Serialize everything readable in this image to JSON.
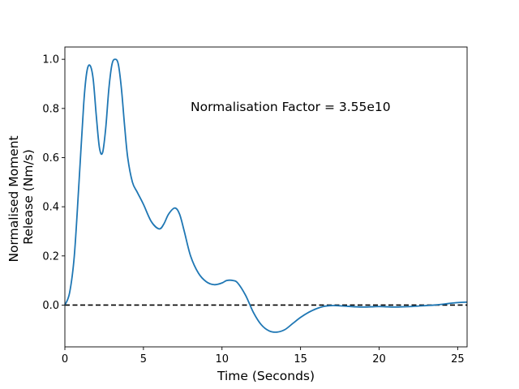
{
  "chart_data": {
    "type": "line",
    "title": "",
    "xlabel": "Time (Seconds)",
    "ylabel_lines": [
      "Normalised Moment",
      "Release (Nm/s)"
    ],
    "xlim": [
      0,
      25.6
    ],
    "ylim": [
      -0.17,
      1.05
    ],
    "xticks": [
      0,
      5,
      10,
      15,
      20,
      25
    ],
    "yticks": [
      0.0,
      0.2,
      0.4,
      0.6,
      0.8,
      1.0
    ],
    "xtick_labels": [
      "0",
      "5",
      "10",
      "15",
      "20",
      "25"
    ],
    "ytick_labels": [
      "0.0",
      "0.2",
      "0.4",
      "0.6",
      "0.8",
      "1.0"
    ],
    "grid": false,
    "annotation": {
      "text": "Normalisation Factor = 3.55e10",
      "x": 8.0,
      "y": 0.81
    },
    "reference_line": {
      "y": 0.0,
      "style": "dashed",
      "color": "#000000"
    },
    "series": [
      {
        "color": "#1f77b4",
        "x": [
          0.0,
          0.3,
          0.6,
          0.9,
          1.2,
          1.4,
          1.6,
          1.8,
          2.0,
          2.2,
          2.4,
          2.6,
          2.8,
          3.0,
          3.2,
          3.4,
          3.6,
          3.8,
          4.0,
          4.3,
          4.6,
          5.0,
          5.5,
          6.0,
          6.3,
          6.6,
          7.0,
          7.3,
          7.6,
          8.0,
          8.5,
          9.0,
          9.5,
          10.0,
          10.3,
          10.7,
          11.0,
          11.5,
          12.0,
          12.5,
          13.0,
          13.5,
          14.0,
          14.5,
          15.0,
          15.5,
          16.0,
          16.5,
          17.0,
          17.5,
          18.0,
          18.5,
          19.0,
          19.5,
          20.0,
          20.5,
          21.0,
          21.5,
          22.0,
          22.5,
          23.0,
          23.5,
          24.0,
          24.5,
          25.0,
          25.6
        ],
        "y": [
          0.0,
          0.05,
          0.2,
          0.5,
          0.82,
          0.95,
          0.975,
          0.92,
          0.77,
          0.64,
          0.62,
          0.72,
          0.88,
          0.98,
          1.0,
          0.98,
          0.88,
          0.73,
          0.6,
          0.5,
          0.46,
          0.41,
          0.34,
          0.31,
          0.33,
          0.37,
          0.395,
          0.37,
          0.3,
          0.2,
          0.13,
          0.095,
          0.083,
          0.09,
          0.1,
          0.1,
          0.09,
          0.04,
          -0.03,
          -0.08,
          -0.105,
          -0.11,
          -0.1,
          -0.075,
          -0.05,
          -0.03,
          -0.015,
          -0.005,
          -0.002,
          -0.003,
          -0.005,
          -0.007,
          -0.008,
          -0.007,
          -0.006,
          -0.007,
          -0.008,
          -0.007,
          -0.006,
          -0.004,
          -0.002,
          0.0,
          0.003,
          0.007,
          0.01,
          0.012
        ]
      }
    ]
  }
}
